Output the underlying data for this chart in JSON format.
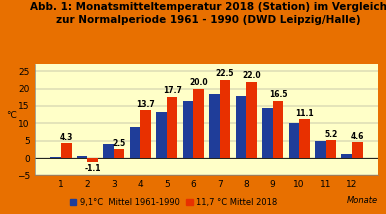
{
  "title_line1": "Abb. 1: Monatsmitteltemperatur 2018 (Station) im Vergleich",
  "title_line2": "zur Normalperiode 1961 - 1990 (DWD Leipzig/Halle)",
  "months": [
    1,
    2,
    3,
    4,
    5,
    6,
    7,
    8,
    9,
    10,
    11,
    12
  ],
  "mittel_values": [
    0.3,
    0.7,
    4.0,
    8.8,
    13.3,
    16.5,
    18.3,
    17.8,
    14.3,
    10.1,
    4.8,
    1.3
  ],
  "station_values": [
    4.3,
    -1.1,
    2.5,
    13.7,
    17.7,
    20.0,
    22.5,
    22.0,
    16.5,
    11.1,
    5.2,
    4.6
  ],
  "station_labels": [
    4.3,
    -1.1,
    2.5,
    13.7,
    17.7,
    20.0,
    22.5,
    22.0,
    16.5,
    11.1,
    5.2,
    4.6
  ],
  "bar_color_mittel": "#1F3D99",
  "bar_color_station": "#E83000",
  "background_outer": "#E87000",
  "background_plot": "#FFFFC8",
  "ylim": [
    -5,
    27
  ],
  "yticks": [
    -5,
    0,
    5,
    10,
    15,
    20,
    25
  ],
  "legend_mittel": "9,1°C  Mittel 1961-1990",
  "legend_station": "11,7 °C Mittel 2018",
  "ylabel": "°C",
  "xlabel_note": "Monate",
  "title_fontsize": 7.5,
  "tick_fontsize": 6.5,
  "label_fontsize": 5.5,
  "legend_fontsize": 6.0
}
